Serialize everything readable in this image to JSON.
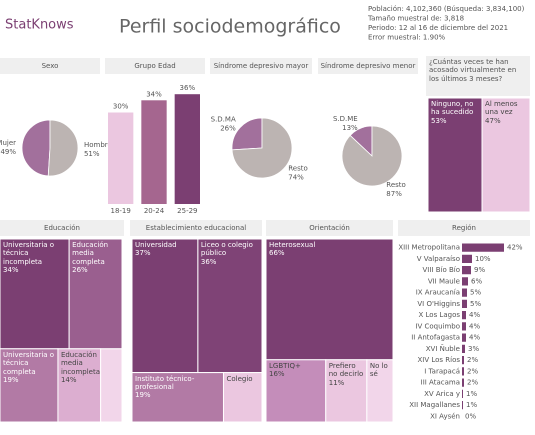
{
  "header": {
    "logo": "StatKnows",
    "title": "Perfil sociodemográfico",
    "info": [
      "Población: 4,102,360 (Búsqueda: 3,834,100)",
      "Tamaño muestral de: 3,818",
      "Periodo: 12 al 16 de diciembre del 2021",
      "Error muestral: 1.90%"
    ]
  },
  "chart_data": [
    {
      "type": "pie",
      "title": "Sexo",
      "categories": [
        "Mujer",
        "Hombre"
      ],
      "values": [
        49,
        51
      ],
      "value_labels": [
        "49%",
        "51%"
      ],
      "colors": [
        "#a2709c",
        "#bcb4b2"
      ]
    },
    {
      "type": "bar",
      "title": "Grupo Edad",
      "categories": [
        "18-19",
        "20-24",
        "25-29"
      ],
      "values": [
        30,
        34,
        36
      ],
      "value_labels": [
        "30%",
        "34%",
        "36%"
      ],
      "colors": [
        "#ebc7e0",
        "#a5668f",
        "#7b3f72"
      ]
    },
    {
      "type": "pie",
      "title": "Síndrome depresivo mayor",
      "categories": [
        "S.D.MA",
        "Resto"
      ],
      "values": [
        26,
        74
      ],
      "value_labels": [
        "26%",
        "74%"
      ],
      "colors": [
        "#a2709c",
        "#bcb4b2"
      ]
    },
    {
      "type": "pie",
      "title": "Síndrome depresivo menor",
      "categories": [
        "S.D.ME",
        "Resto"
      ],
      "values": [
        13,
        87
      ],
      "value_labels": [
        "13%",
        "87%"
      ],
      "colors": [
        "#a2709c",
        "#bcb4b2"
      ]
    },
    {
      "type": "treemap",
      "title": "¿Cuántas veces te han acosado virtualmente en los últimos 3 meses?",
      "categories": [
        "Ninguno, no ha sucedido",
        "Al menos una vez"
      ],
      "values": [
        53,
        47
      ],
      "value_labels": [
        "53%",
        "47%"
      ],
      "colors": [
        "#7b3f72",
        "#ebc7e0"
      ]
    },
    {
      "type": "treemap",
      "title": "Educación",
      "categories": [
        "Universitaria o técnica incompleta",
        "Educación media completa",
        "Universitaria o técnica completa",
        "Educación media incompleta"
      ],
      "values": [
        34,
        26,
        19,
        14
      ],
      "value_labels": [
        "34%",
        "26%",
        "19%",
        "14%"
      ],
      "colors": [
        "#7b3f72",
        "#9a5f8f",
        "#b27aa5",
        "#dcaed0"
      ]
    },
    {
      "type": "treemap",
      "title": "Establecimiento educacional",
      "categories": [
        "Universidad",
        "Liceo o colegio público",
        "Instituto técnico-profesional",
        "Colegio"
      ],
      "values": [
        37,
        36,
        19,
        8
      ],
      "value_labels": [
        "37%",
        "36%",
        "19%",
        null
      ],
      "colors": [
        "#7b3f72",
        "#7f4376",
        "#b27aa5",
        "#ebc7e0"
      ]
    },
    {
      "type": "treemap",
      "title": "Orientación",
      "categories": [
        "Heterosexual",
        "LGBTIQ+",
        "Prefiero no decirlo",
        "No lo sé"
      ],
      "values": [
        66,
        16,
        11,
        7
      ],
      "value_labels": [
        "66%",
        "16%",
        "11%",
        null
      ],
      "colors": [
        "#7b3f72",
        "#c48dba",
        "#ebc7e0",
        "#f2d6ea"
      ]
    },
    {
      "type": "hbar",
      "title": "Región",
      "categories": [
        "XIII Metropolitana",
        "V Valparaíso",
        "VIII Bío Bío",
        "VII Maule",
        "IX Araucanía",
        "VI O'Higgins",
        "X Los Lagos",
        "IV Coquimbo",
        "II Antofagasta",
        "XVI Ñuble",
        "XIV Los Ríos",
        "I Tarapacá",
        "III Atacama",
        "XV Arica y",
        "XII Magallanes",
        "XI Aysén"
      ],
      "values": [
        42,
        10,
        9,
        6,
        5,
        5,
        4,
        4,
        4,
        3,
        2,
        2,
        2,
        1,
        1,
        0
      ],
      "value_labels": [
        "42%",
        "10%",
        "9%",
        "6%",
        "5%",
        "5%",
        "4%",
        "4%",
        "4%",
        "3%",
        "2%",
        "2%",
        "2%",
        "1%",
        "1%",
        "0%"
      ],
      "color": "#7b3f72"
    }
  ]
}
